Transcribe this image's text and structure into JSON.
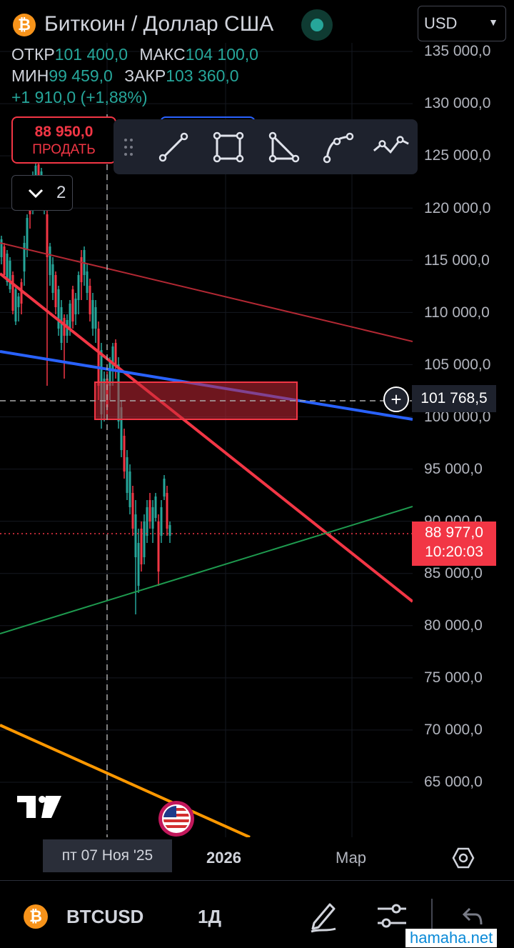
{
  "header": {
    "coin_symbol": "₿",
    "title": "Биткоин / Доллар США",
    "open_label": "ОТКР",
    "open_value": "101 400,0",
    "high_label": "МАКС",
    "high_value": "104 100,0",
    "low_label": "МИН",
    "low_value": "99 459,0",
    "close_label": "ЗАКР",
    "close_value": "103 360,0",
    "change": "+1 910,0 (+1,88%)",
    "currency": "USD"
  },
  "trade": {
    "sell_price": "88 950,0",
    "sell_label": "ПРОДАТЬ"
  },
  "collapse": {
    "count": "2"
  },
  "drawing_tools": [
    "trend-line-icon",
    "rectangle-icon",
    "triangle-icon",
    "curve-icon",
    "path-icon"
  ],
  "price_axis": {
    "labels": [
      "135 000,0",
      "130 000,0",
      "125 000,0",
      "120 000,0",
      "115 000,0",
      "110 000,0",
      "105 000,0",
      "100 000,0",
      "95 000,0",
      "90 000,0",
      "85 000,0",
      "80 000,0",
      "75 000,0",
      "70 000,0",
      "65 000,0"
    ],
    "crosshair_price": "101 768,5",
    "last_price": "88 977,0",
    "countdown": "10:20:03"
  },
  "time_axis": {
    "crosshair_date": "пт 07 Ноя '25",
    "labels": [
      "2026",
      "Мар"
    ]
  },
  "bottom": {
    "symbol": "BTCUSD",
    "interval": "1Д"
  },
  "watermark": "hamaha.net",
  "colors": {
    "up": "#26a69a",
    "down": "#f23645",
    "accent": "#2962ff",
    "background": "#000000"
  },
  "chart_data": {
    "type": "candlestick",
    "title": "",
    "ylim": [
      61500,
      136500
    ],
    "y_ticks": [
      135000,
      130000,
      125000,
      120000,
      115000,
      110000,
      105000,
      100000,
      95000,
      90000,
      85000,
      80000,
      75000,
      70000,
      65000
    ],
    "crosshair_price": 101768.5,
    "last_price": 88977,
    "note_labels": [
      "2026",
      "Мар"
    ]
  }
}
